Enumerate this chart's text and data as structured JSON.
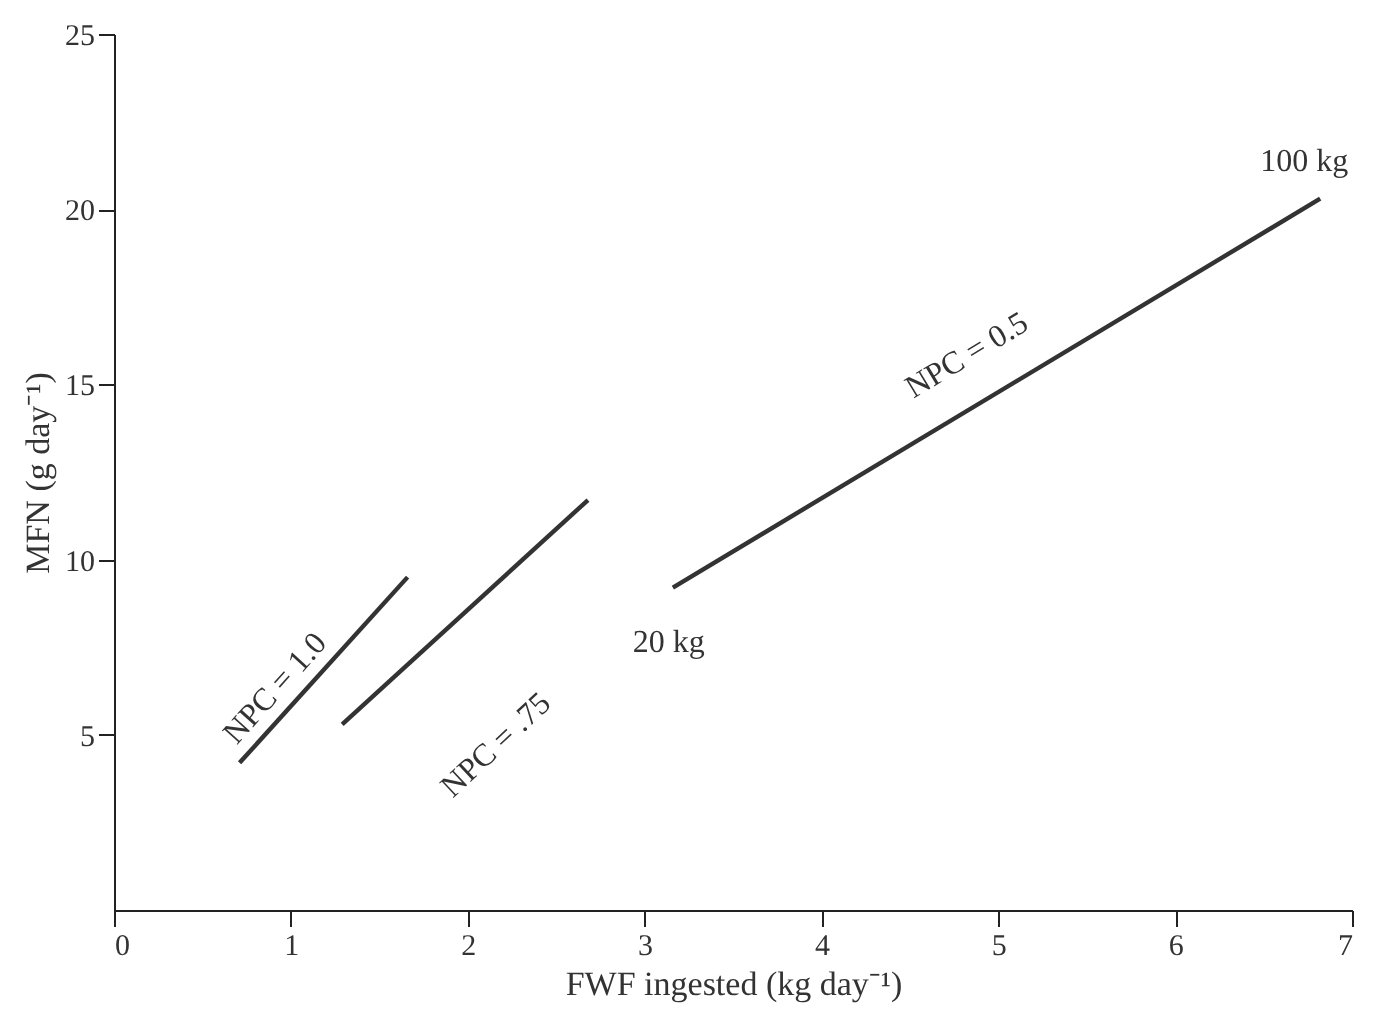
{
  "chart_data": {
    "type": "line",
    "xlabel": "FWF ingested (kg day⁻¹)",
    "ylabel": "MFN (g day⁻¹)",
    "xlim": [
      0,
      7
    ],
    "xticks": [
      0,
      1,
      2,
      3,
      4,
      5,
      6,
      7
    ],
    "ylim": [
      0,
      25
    ],
    "yticks": [
      5,
      10,
      15,
      20,
      25
    ],
    "series": [
      {
        "name": "NPC = 1.0",
        "color": "#333333",
        "x": [
          0.71,
          1.66
        ],
        "values": [
          4.2,
          9.5
        ]
      },
      {
        "name": "NPC = .75",
        "color": "#333333",
        "x": [
          1.29,
          2.68
        ],
        "values": [
          5.3,
          11.7
        ]
      },
      {
        "name": "NPC = 0.5",
        "color": "#333333",
        "x": [
          3.16,
          6.82
        ],
        "values": [
          9.2,
          20.3
        ]
      }
    ],
    "annotations": [
      {
        "text": "20 kg",
        "x": 3.16,
        "y": 9.2
      },
      {
        "text": "100 kg",
        "x": 6.82,
        "y": 20.3
      }
    ]
  }
}
